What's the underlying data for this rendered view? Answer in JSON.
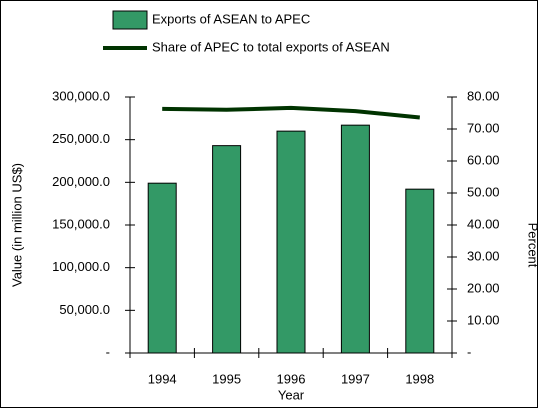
{
  "chart_data": {
    "type": "bar",
    "x_label": "Year",
    "y_label": "Value (in million US$)",
    "y2_label": "Percent",
    "categories": [
      "1994",
      "1995",
      "1996",
      "1997",
      "1998"
    ],
    "series": [
      {
        "name": "Exports of ASEAN to APEC",
        "type": "bar",
        "color": "#339966",
        "values": [
          199000,
          243000,
          260000,
          267000,
          192000
        ]
      },
      {
        "name": "Share of APEC to total exports of ASEAN",
        "type": "line",
        "axis": "y2",
        "color": "#003300",
        "values": [
          76.3,
          76.0,
          76.6,
          75.6,
          73.6
        ]
      }
    ],
    "ylim": [
      0,
      300000
    ],
    "yticks": [
      {
        "value": 0,
        "label": "-"
      },
      {
        "value": 50000,
        "label": "50,000.0"
      },
      {
        "value": 100000,
        "label": "100,000.0"
      },
      {
        "value": 150000,
        "label": "150,000.0"
      },
      {
        "value": 200000,
        "label": "200,000.0"
      },
      {
        "value": 250000,
        "label": "250,000.0"
      },
      {
        "value": 300000,
        "label": "300,000.0"
      }
    ],
    "y2lim": [
      0,
      80
    ],
    "y2ticks": [
      {
        "value": 0,
        "label": "-"
      },
      {
        "value": 10,
        "label": "10.00"
      },
      {
        "value": 20,
        "label": "20.00"
      },
      {
        "value": 30,
        "label": "30.00"
      },
      {
        "value": 40,
        "label": "40.00"
      },
      {
        "value": 50,
        "label": "50.00"
      },
      {
        "value": 60,
        "label": "60.00"
      },
      {
        "value": 70,
        "label": "70.00"
      },
      {
        "value": 80,
        "label": "80.00"
      }
    ]
  }
}
